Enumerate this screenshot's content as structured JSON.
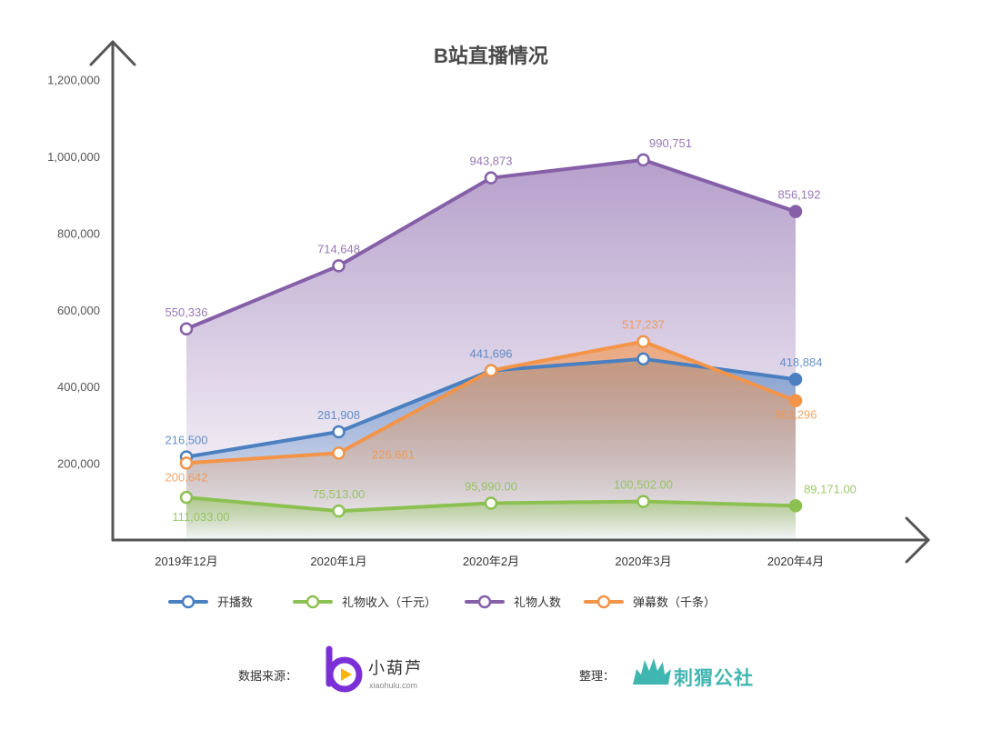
{
  "chart_data": {
    "type": "area",
    "title": "B站直播情况",
    "categories": [
      "2019年12月",
      "2020年1月",
      "2020年2月",
      "2020年3月",
      "2020年4月"
    ],
    "ylim": [
      0,
      1200000
    ],
    "yticks": [
      "1,200,000",
      "1,000,000",
      "800,000",
      "600,000",
      "400,000",
      "200,000"
    ],
    "ytick_values": [
      1200000,
      1000000,
      800000,
      600000,
      400000,
      200000
    ],
    "legend_position": "bottom",
    "grid": false,
    "series": [
      {
        "name": "礼物人数",
        "color": "#8560a8",
        "values": [
          550336,
          714648,
          943873,
          990751,
          856192
        ],
        "labels": [
          "550,336",
          "714,648",
          "943,873",
          "990,751",
          "856,192"
        ]
      },
      {
        "name": "开播数",
        "color": "#4a7fc0",
        "values": [
          216500,
          281908,
          441696,
          472000,
          418884
        ],
        "labels": [
          "216,500",
          "281,908",
          "441,696",
          "",
          "418,884"
        ]
      },
      {
        "name": "弹幕数（千条）",
        "color": "#f39449",
        "values": [
          200642,
          226661,
          441696,
          517237,
          363296
        ],
        "labels": [
          "200,642",
          "226,661",
          "",
          "517,237",
          "363,296"
        ]
      },
      {
        "name": "礼物收入（千元）",
        "color": "#8cc152",
        "values": [
          111033,
          75513,
          95990,
          100502,
          89171
        ],
        "labels": [
          "111,033.00",
          "75,513.00",
          "95,990.00",
          "100,502.00",
          "89,171.00"
        ]
      }
    ],
    "legend": [
      "开播数",
      "礼物收入（千元）",
      "礼物人数",
      "弹幕数（千条）"
    ]
  },
  "footer": {
    "source_label": "数据来源：",
    "source_brand": "小葫芦",
    "source_url": "xiaohulu.com",
    "editor_label": "整理：",
    "editor_brand": "刺猬公社"
  },
  "colors": {
    "axis": "#555555",
    "brand1": "#7b2fd6",
    "brand1_accent": "#ffb400",
    "brand2": "#3fb6b0"
  }
}
